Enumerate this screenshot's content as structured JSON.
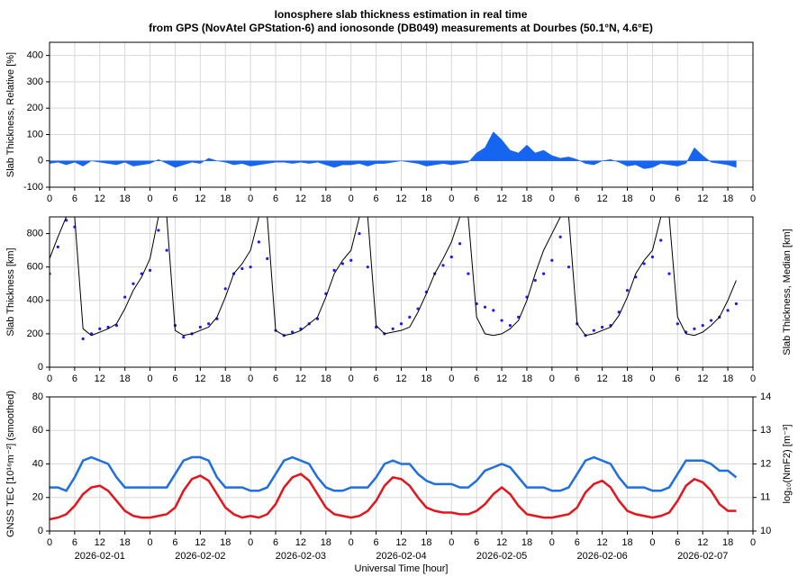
{
  "chart_data": [
    {
      "type": "area",
      "title": "Ionosphere slab thickness estimation in real time",
      "subtitle": "from GPS (NovAtel GPStation-6) and ionosonde (DB049) measurements at Dourbes (50.1°N, 4.6°E)",
      "ylabel": "Slab Thickness, Relative [%]",
      "color": "#1565f0",
      "grid": true,
      "ylim": [
        -100,
        450
      ],
      "yticks": [
        -100,
        0,
        100,
        200,
        300,
        400
      ],
      "xlim": [
        0,
        168
      ],
      "xticks": [
        0,
        6,
        12,
        18,
        {
          "value": 24,
          "label": "0"
        },
        {
          "value": 30,
          "label": "6"
        },
        {
          "value": 36,
          "label": "12"
        },
        {
          "value": 42,
          "label": "18"
        },
        {
          "value": 48,
          "label": "0"
        },
        {
          "value": 54,
          "label": "6"
        },
        {
          "value": 60,
          "label": "12"
        },
        {
          "value": 66,
          "label": "18"
        },
        {
          "value": 72,
          "label": "0"
        },
        {
          "value": 78,
          "label": "6"
        },
        {
          "value": 84,
          "label": "12"
        },
        {
          "value": 90,
          "label": "18"
        },
        {
          "value": 96,
          "label": "0"
        },
        {
          "value": 102,
          "label": "6"
        },
        {
          "value": 108,
          "label": "12"
        },
        {
          "value": 114,
          "label": "18"
        },
        {
          "value": 120,
          "label": "0"
        },
        {
          "value": 126,
          "label": "6"
        },
        {
          "value": 132,
          "label": "12"
        },
        {
          "value": 138,
          "label": "18"
        },
        {
          "value": 144,
          "label": "0"
        },
        {
          "value": 150,
          "label": "6"
        },
        {
          "value": 156,
          "label": "12"
        },
        {
          "value": 162,
          "label": "18"
        },
        {
          "value": 168,
          "label": "0"
        }
      ],
      "x": [
        0,
        2,
        4,
        6,
        8,
        10,
        12,
        14,
        16,
        18,
        20,
        22,
        24,
        26,
        28,
        30,
        32,
        34,
        36,
        38,
        40,
        42,
        44,
        46,
        48,
        50,
        52,
        54,
        56,
        58,
        60,
        62,
        64,
        66,
        68,
        70,
        72,
        74,
        76,
        78,
        80,
        82,
        84,
        86,
        88,
        90,
        92,
        94,
        96,
        98,
        100,
        102,
        104,
        106,
        108,
        110,
        112,
        114,
        116,
        118,
        120,
        122,
        124,
        126,
        128,
        130,
        132,
        134,
        136,
        138,
        140,
        142,
        144,
        146,
        148,
        150,
        152,
        154,
        156,
        158,
        160,
        162,
        164
      ],
      "values": [
        -10,
        -5,
        -15,
        -5,
        -20,
        0,
        -5,
        -10,
        -15,
        -5,
        -20,
        -15,
        -10,
        5,
        -10,
        -25,
        -15,
        -5,
        -10,
        10,
        0,
        -5,
        -15,
        -10,
        -20,
        -15,
        -10,
        -5,
        -5,
        -10,
        -5,
        -10,
        -5,
        -15,
        -25,
        -15,
        -15,
        -10,
        -20,
        -10,
        -10,
        -5,
        0,
        -5,
        -10,
        -20,
        -15,
        -10,
        -15,
        -10,
        -5,
        30,
        50,
        110,
        80,
        40,
        30,
        60,
        30,
        40,
        20,
        10,
        15,
        5,
        -10,
        -15,
        0,
        5,
        -5,
        -20,
        -15,
        -30,
        -25,
        -10,
        -15,
        -20,
        -10,
        50,
        20,
        -5,
        -10,
        -15,
        -25
      ]
    },
    {
      "type": "line",
      "ylabel": "Slab Thickness [km]",
      "y2label": "Slab Thickness, Median [km]",
      "grid": true,
      "ylim": [
        0,
        900
      ],
      "yticks": [
        0,
        200,
        400,
        600,
        800
      ],
      "xlim": [
        0,
        168
      ],
      "xticks": [
        0,
        6,
        12,
        18,
        {
          "value": 24,
          "label": "0"
        },
        {
          "value": 30,
          "label": "6"
        },
        {
          "value": 36,
          "label": "12"
        },
        {
          "value": 42,
          "label": "18"
        },
        {
          "value": 48,
          "label": "0"
        },
        {
          "value": 54,
          "label": "6"
        },
        {
          "value": 60,
          "label": "12"
        },
        {
          "value": 66,
          "label": "18"
        },
        {
          "value": 72,
          "label": "0"
        },
        {
          "value": 78,
          "label": "6"
        },
        {
          "value": 84,
          "label": "12"
        },
        {
          "value": 90,
          "label": "18"
        },
        {
          "value": 96,
          "label": "0"
        },
        {
          "value": 102,
          "label": "6"
        },
        {
          "value": 108,
          "label": "12"
        },
        {
          "value": 114,
          "label": "18"
        },
        {
          "value": 120,
          "label": "0"
        },
        {
          "value": 126,
          "label": "6"
        },
        {
          "value": 132,
          "label": "12"
        },
        {
          "value": 138,
          "label": "18"
        },
        {
          "value": 144,
          "label": "0"
        },
        {
          "value": 150,
          "label": "6"
        },
        {
          "value": 156,
          "label": "12"
        },
        {
          "value": 162,
          "label": "18"
        },
        {
          "value": 168,
          "label": "0"
        }
      ],
      "x": [
        0,
        2,
        4,
        6,
        8,
        10,
        12,
        14,
        16,
        18,
        20,
        22,
        24,
        26,
        28,
        30,
        32,
        34,
        36,
        38,
        40,
        42,
        44,
        46,
        48,
        50,
        52,
        54,
        56,
        58,
        60,
        62,
        64,
        66,
        68,
        70,
        72,
        74,
        76,
        78,
        80,
        82,
        84,
        86,
        88,
        90,
        92,
        94,
        96,
        98,
        100,
        102,
        104,
        106,
        108,
        110,
        112,
        114,
        116,
        118,
        120,
        122,
        124,
        126,
        128,
        130,
        132,
        134,
        136,
        138,
        140,
        142,
        144,
        146,
        148,
        150,
        152,
        154,
        156,
        158,
        160,
        162,
        164
      ],
      "series": [
        {
          "style": "dots",
          "color": "#1a1aff",
          "values": [
            560,
            720,
            880,
            840,
            170,
            200,
            230,
            240,
            250,
            420,
            500,
            560,
            580,
            820,
            700,
            250,
            180,
            200,
            240,
            260,
            290,
            470,
            560,
            590,
            600,
            750,
            650,
            220,
            190,
            210,
            230,
            260,
            290,
            440,
            580,
            620,
            640,
            800,
            600,
            240,
            200,
            230,
            260,
            300,
            350,
            450,
            560,
            610,
            660,
            740,
            560,
            380,
            360,
            340,
            280,
            250,
            300,
            420,
            520,
            560,
            640,
            780,
            600,
            260,
            190,
            220,
            240,
            250,
            330,
            460,
            540,
            620,
            660,
            760,
            560,
            260,
            210,
            230,
            250,
            280,
            300,
            340,
            380
          ]
        },
        {
          "style": "line",
          "color": "#000000",
          "values": [
            650,
            780,
            900,
            900,
            230,
            190,
            210,
            230,
            260,
            350,
            460,
            540,
            650,
            900,
            900,
            220,
            190,
            200,
            220,
            240,
            300,
            420,
            560,
            620,
            700,
            900,
            900,
            220,
            190,
            200,
            220,
            260,
            300,
            420,
            560,
            640,
            700,
            900,
            900,
            250,
            200,
            210,
            220,
            240,
            330,
            440,
            560,
            650,
            750,
            900,
            900,
            300,
            200,
            190,
            200,
            230,
            280,
            400,
            560,
            700,
            800,
            900,
            900,
            260,
            190,
            200,
            220,
            240,
            310,
            420,
            560,
            640,
            700,
            900,
            900,
            300,
            200,
            190,
            210,
            250,
            300,
            400,
            520
          ]
        }
      ]
    },
    {
      "type": "line",
      "ylabel": "GNSS TEC [10¹⁶m⁻²] (smoothed)",
      "y2label": "log₁₀(NmF2) [m⁻³]",
      "xlabel": "Universal Time [hour]",
      "grid": true,
      "ylim": [
        0,
        80
      ],
      "yticks": [
        0,
        20,
        40,
        60,
        80
      ],
      "y2lim": [
        10,
        14
      ],
      "y2ticks": [
        10,
        11,
        12,
        13,
        14
      ],
      "xlim": [
        0,
        168
      ],
      "xticks": [
        0,
        6,
        12,
        18,
        {
          "value": 24,
          "label": "0"
        },
        {
          "value": 30,
          "label": "6"
        },
        {
          "value": 36,
          "label": "12"
        },
        {
          "value": 42,
          "label": "18"
        },
        {
          "value": 48,
          "label": "0"
        },
        {
          "value": 54,
          "label": "6"
        },
        {
          "value": 60,
          "label": "12"
        },
        {
          "value": 66,
          "label": "18"
        },
        {
          "value": 72,
          "label": "0"
        },
        {
          "value": 78,
          "label": "6"
        },
        {
          "value": 84,
          "label": "12"
        },
        {
          "value": 90,
          "label": "18"
        },
        {
          "value": 96,
          "label": "0"
        },
        {
          "value": 102,
          "label": "6"
        },
        {
          "value": 108,
          "label": "12"
        },
        {
          "value": 114,
          "label": "18"
        },
        {
          "value": 120,
          "label": "0"
        },
        {
          "value": 126,
          "label": "6"
        },
        {
          "value": 132,
          "label": "12"
        },
        {
          "value": 138,
          "label": "18"
        },
        {
          "value": 144,
          "label": "0"
        },
        {
          "value": 150,
          "label": "6"
        },
        {
          "value": 156,
          "label": "12"
        },
        {
          "value": 162,
          "label": "18"
        },
        {
          "value": 168,
          "label": "0"
        }
      ],
      "date_labels": [
        {
          "value": 12,
          "label": "2026-02-01"
        },
        {
          "value": 36,
          "label": "2026-02-02"
        },
        {
          "value": 60,
          "label": "2026-02-03"
        },
        {
          "value": 84,
          "label": "2026-02-04"
        },
        {
          "value": 108,
          "label": "2026-02-05"
        },
        {
          "value": 132,
          "label": "2026-02-06"
        },
        {
          "value": 156,
          "label": "2026-02-07"
        }
      ],
      "x": [
        0,
        2,
        4,
        6,
        8,
        10,
        12,
        14,
        16,
        18,
        20,
        22,
        24,
        26,
        28,
        30,
        32,
        34,
        36,
        38,
        40,
        42,
        44,
        46,
        48,
        50,
        52,
        54,
        56,
        58,
        60,
        62,
        64,
        66,
        68,
        70,
        72,
        74,
        76,
        78,
        80,
        82,
        84,
        86,
        88,
        90,
        92,
        94,
        96,
        98,
        100,
        102,
        104,
        106,
        108,
        110,
        112,
        114,
        116,
        118,
        120,
        122,
        124,
        126,
        128,
        130,
        132,
        134,
        136,
        138,
        140,
        142,
        144,
        146,
        148,
        150,
        152,
        154,
        156,
        158,
        160,
        162,
        164
      ],
      "series": [
        {
          "style": "line",
          "color": "#e8141c",
          "values": [
            7,
            8,
            10,
            15,
            22,
            26,
            27,
            24,
            18,
            12,
            9,
            8,
            8,
            9,
            10,
            14,
            24,
            31,
            33,
            30,
            22,
            14,
            10,
            8,
            9,
            8,
            10,
            16,
            26,
            32,
            34,
            30,
            22,
            14,
            10,
            9,
            8,
            9,
            12,
            18,
            27,
            32,
            31,
            27,
            20,
            14,
            12,
            11,
            11,
            10,
            10,
            12,
            16,
            22,
            26,
            22,
            15,
            10,
            9,
            8,
            8,
            9,
            10,
            14,
            23,
            28,
            30,
            26,
            18,
            12,
            10,
            9,
            8,
            9,
            11,
            18,
            27,
            31,
            29,
            24,
            16,
            12,
            12
          ]
        },
        {
          "style": "line",
          "axis": "y2",
          "color": "#1f6fe0",
          "values": [
            11.3,
            11.3,
            11.2,
            11.6,
            12.1,
            12.2,
            12.1,
            12.0,
            11.6,
            11.3,
            11.3,
            11.3,
            11.3,
            11.3,
            11.3,
            11.7,
            12.1,
            12.2,
            12.2,
            12.1,
            11.6,
            11.3,
            11.3,
            11.3,
            11.2,
            11.2,
            11.3,
            11.7,
            12.1,
            12.2,
            12.1,
            12.0,
            11.6,
            11.3,
            11.2,
            11.2,
            11.3,
            11.3,
            11.3,
            11.6,
            12.0,
            12.1,
            12.0,
            12.0,
            11.7,
            11.5,
            11.4,
            11.4,
            11.4,
            11.3,
            11.3,
            11.5,
            11.8,
            11.9,
            12.0,
            11.9,
            11.6,
            11.3,
            11.3,
            11.3,
            11.2,
            11.2,
            11.3,
            11.7,
            12.1,
            12.2,
            12.1,
            12.0,
            11.6,
            11.3,
            11.3,
            11.3,
            11.2,
            11.2,
            11.3,
            11.7,
            12.1,
            12.1,
            12.1,
            12.0,
            11.8,
            11.8,
            11.6
          ]
        }
      ]
    }
  ]
}
